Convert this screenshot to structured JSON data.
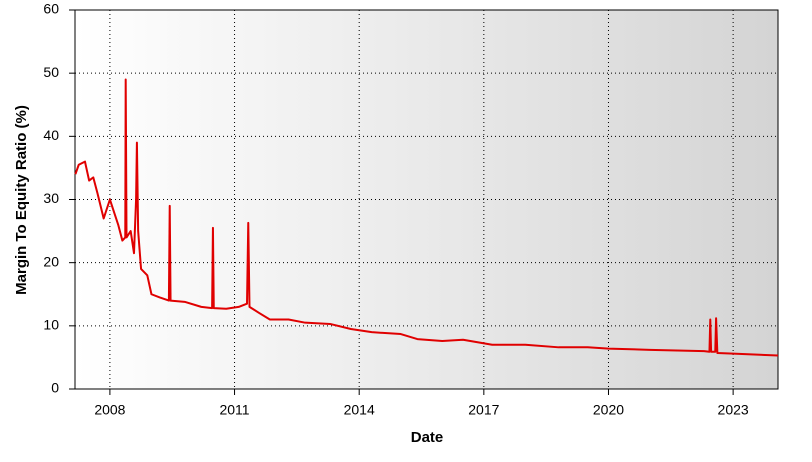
{
  "chart_data": {
    "type": "line",
    "x_label": "Date",
    "y_label": "Margin To Equity Ratio (%)",
    "xlim": [
      2007.16,
      2024.08
    ],
    "xticks": [
      2008,
      2011,
      2014,
      2017,
      2020,
      2023
    ],
    "ylim": [
      0,
      60
    ],
    "yticks": [
      0,
      10,
      20,
      30,
      40,
      50,
      60
    ],
    "grid": true,
    "series": [
      {
        "color": "#e00000",
        "x": [
          2007.17,
          2007.25,
          2007.4,
          2007.5,
          2007.6,
          2007.7,
          2007.85,
          2008.0,
          2008.1,
          2008.2,
          2008.3,
          2008.37,
          2008.38,
          2008.4,
          2008.5,
          2008.58,
          2008.63,
          2008.65,
          2008.68,
          2008.75,
          2008.9,
          2009.0,
          2009.2,
          2009.42,
          2009.44,
          2009.46,
          2009.8,
          2010.2,
          2010.46,
          2010.48,
          2010.5,
          2010.8,
          2011.1,
          2011.3,
          2011.33,
          2011.36,
          2011.6,
          2011.85,
          2012.3,
          2012.7,
          2013.3,
          2013.8,
          2014.3,
          2015.0,
          2015.4,
          2016.0,
          2016.5,
          2017.2,
          2018.0,
          2018.8,
          2019.5,
          2020.0,
          2021.0,
          2022.3,
          2022.43,
          2022.45,
          2022.47,
          2022.57,
          2022.59,
          2022.62,
          2023.0,
          2024.08
        ],
        "values": [
          34,
          35.5,
          36,
          33,
          33.5,
          31,
          27,
          30,
          28,
          26,
          23.5,
          24,
          49,
          24,
          25,
          21.5,
          30,
          39,
          25,
          19,
          18,
          15,
          14.5,
          14,
          29,
          14,
          13.8,
          13,
          12.8,
          25.5,
          12.8,
          12.7,
          13,
          13.5,
          26.3,
          13,
          12,
          11,
          11,
          10.5,
          10.3,
          9.5,
          9,
          8.7,
          7.9,
          7.6,
          7.8,
          7,
          7,
          6.6,
          6.6,
          6.4,
          6.2,
          6.0,
          5.9,
          11,
          5.9,
          5.9,
          11.2,
          5.7,
          5.6,
          5.3
        ]
      }
    ]
  }
}
